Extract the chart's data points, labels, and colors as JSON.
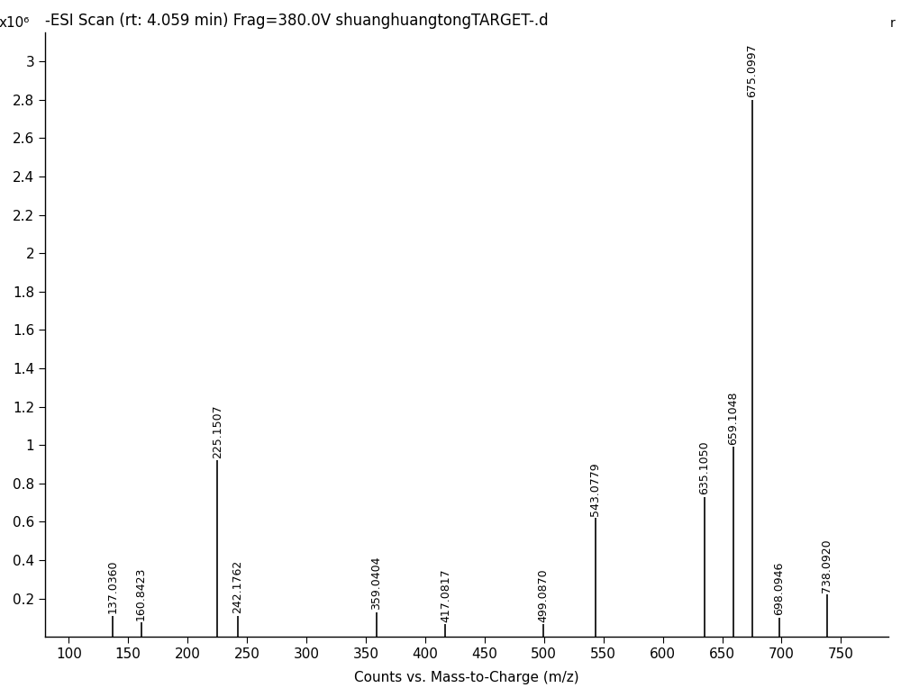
{
  "title": "-ESI Scan (rt: 4.059 min) Frag=380.0V shuanghuangtongTARGET-.d",
  "xlabel": "Counts vs. Mass-to-Charge (m/z)",
  "ylabel_text": "x10⁶",
  "xlim": [
    80,
    790
  ],
  "ylim": [
    0,
    3.15
  ],
  "xticks": [
    100,
    150,
    200,
    250,
    300,
    350,
    400,
    450,
    500,
    550,
    600,
    650,
    700,
    750
  ],
  "yticks": [
    0.2,
    0.4,
    0.6,
    0.8,
    1.0,
    1.2,
    1.4,
    1.6,
    1.8,
    2.0,
    2.2,
    2.4,
    2.6,
    2.8,
    3.0
  ],
  "ytick_labels": [
    "0.2",
    "0.4",
    "0.6",
    "0.8",
    "1",
    "1.2",
    "1.4",
    "1.6",
    "1.8",
    "2",
    "2.2",
    "2.4",
    "2.6",
    "2.8",
    "3"
  ],
  "peaks": [
    {
      "mz": 137.036,
      "intensity": 0.11,
      "label": "137.0360"
    },
    {
      "mz": 160.8423,
      "intensity": 0.075,
      "label": "160.8423"
    },
    {
      "mz": 225.1507,
      "intensity": 0.92,
      "label": "225.1507"
    },
    {
      "mz": 242.1762,
      "intensity": 0.11,
      "label": "242.1762"
    },
    {
      "mz": 359.0404,
      "intensity": 0.13,
      "label": "359.0404"
    },
    {
      "mz": 417.0817,
      "intensity": 0.065,
      "label": "417.0817"
    },
    {
      "mz": 499.087,
      "intensity": 0.065,
      "label": "499.0870"
    },
    {
      "mz": 543.0779,
      "intensity": 0.62,
      "label": "543.0779"
    },
    {
      "mz": 635.105,
      "intensity": 0.73,
      "label": "635.1050"
    },
    {
      "mz": 659.1048,
      "intensity": 0.99,
      "label": "659.1048"
    },
    {
      "mz": 675.0997,
      "intensity": 2.8,
      "label": "675.0997"
    },
    {
      "mz": 698.0946,
      "intensity": 0.1,
      "label": "698.0946"
    },
    {
      "mz": 738.092,
      "intensity": 0.22,
      "label": "738.0920"
    }
  ],
  "line_color": "#000000",
  "text_color": "#000000",
  "background_color": "#ffffff",
  "font_size_title": 12,
  "font_size_labels": 11,
  "font_size_ticks": 11,
  "font_size_peak_labels": 9,
  "r_label": "r"
}
